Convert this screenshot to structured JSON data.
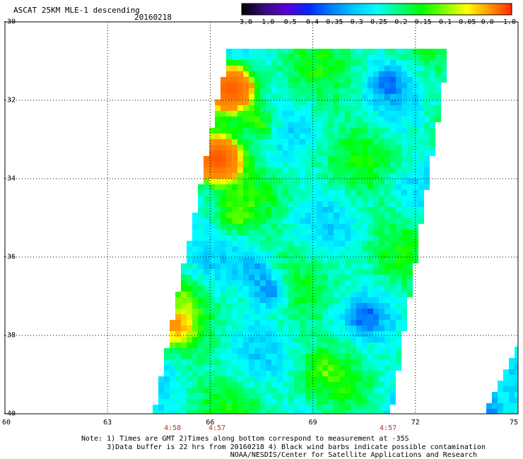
{
  "header": {
    "title": "ASCAT 25KM MLE-1 descending",
    "date": "20160218"
  },
  "colorbar": {
    "labels": [
      "-3.0",
      "-1.0",
      "-0.5",
      "-0.4",
      "-0.35",
      "-0.3",
      "-0.25",
      "-0.2",
      "-0.15",
      "-0.1",
      "-0.05",
      "0.0",
      "1.0"
    ],
    "colors": [
      "#000000",
      "#3a0a7a",
      "#5a00d8",
      "#0028ff",
      "#0080ff",
      "#00c8ff",
      "#00ffff",
      "#00ff80",
      "#00ff00",
      "#80ff00",
      "#ffff00",
      "#ff9900",
      "#ff2a00"
    ]
  },
  "axes": {
    "lat_labels": [
      "-30",
      "-32",
      "-34",
      "-36",
      "-38",
      "-40"
    ],
    "lon_labels": [
      "60",
      "63",
      "66",
      "69",
      "72",
      "75"
    ]
  },
  "chart_data": {
    "type": "heatmap",
    "title": "ASCAT 25KM MLE-1 descending",
    "date": "20160218",
    "lon_range": [
      60,
      75
    ],
    "lat_range": [
      -40,
      -30
    ],
    "colorbar_ticks": [
      -3.0,
      -1.0,
      -0.5,
      -0.4,
      -0.35,
      -0.3,
      -0.25,
      -0.2,
      -0.15,
      -0.1,
      -0.05,
      0.0,
      1.0
    ],
    "swaths": [
      {
        "name": "main",
        "top_left_lon": 66.6,
        "top_right_lon": 72.9,
        "top_lat": -30.7,
        "bottom_left_lon": 64.4,
        "bottom_right_lon": 71.2,
        "bottom_lat": -40.0
      },
      {
        "name": "partial",
        "top_right_lon": 75.0,
        "top_lat": -38.3,
        "bottom_left_lon": 74.0,
        "bottom_lat": -40.0
      }
    ],
    "features": [
      {
        "lon": 66.6,
        "lat": -31.7,
        "value": 0.5
      },
      {
        "lon": 66.2,
        "lat": -33.5,
        "value": 0.6
      },
      {
        "lon": 67.5,
        "lat": -32.6,
        "value": -0.1
      },
      {
        "lon": 66.8,
        "lat": -35.0,
        "value": -0.15
      },
      {
        "lon": 67.4,
        "lat": -36.3,
        "value": -0.3
      },
      {
        "lon": 67.8,
        "lat": -36.9,
        "value": -0.36
      },
      {
        "lon": 70.5,
        "lat": -37.5,
        "value": -0.3
      },
      {
        "lon": 71.2,
        "lat": -31.5,
        "value": -0.3
      },
      {
        "lon": 71.5,
        "lat": -34.2,
        "value": -0.25
      },
      {
        "lon": 69.3,
        "lat": -38.8,
        "value": -0.17
      },
      {
        "lon": 65.2,
        "lat": -37.0,
        "value": -0.15
      },
      {
        "lon": 65.0,
        "lat": -37.8,
        "value": -0.05
      },
      {
        "lon": 74.0,
        "lat": -40.0,
        "value": -0.4
      }
    ]
  },
  "times": [
    {
      "lon": 64.9,
      "label": "4:58"
    },
    {
      "lon": 66.2,
      "label": "4:57"
    },
    {
      "lon": 71.2,
      "label": "4:57"
    }
  ],
  "notes": [
    "Note: 1) Times are GMT 2)Times along bottom correspond to measurement at -35S",
    "      3)Data buffer is 22 hrs from 20160218 4) Black wind barbs indicate possible contamination",
    "                                   NOAA/NESDIS/Center for Satellite Applications and Research"
  ]
}
